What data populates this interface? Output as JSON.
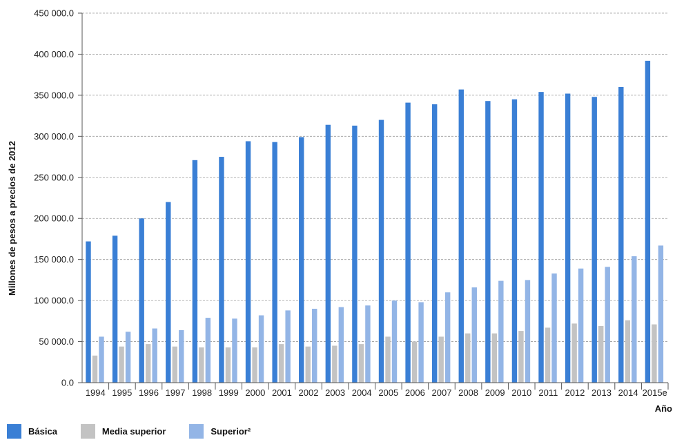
{
  "chart_data": {
    "type": "bar",
    "ylabel": "Millones de pesos a precios de 2012",
    "xlabel": "Año",
    "ylim": [
      0,
      450000
    ],
    "yticks": [
      0,
      50000,
      100000,
      150000,
      200000,
      250000,
      300000,
      350000,
      400000,
      450000
    ],
    "ytick_labels": [
      "0.0",
      "50 000.0",
      "100 000.0",
      "150 000.0",
      "200 000.0",
      "250 000.0",
      "300 000.0",
      "350 000.0",
      "400 000.0",
      "450 000.0"
    ],
    "grid": true,
    "legend_position": "bottom-left",
    "categories": [
      "1994",
      "1995",
      "1996",
      "1997",
      "1998",
      "1999",
      "2000",
      "2001",
      "2002",
      "2003",
      "2004",
      "2005",
      "2006",
      "2007",
      "2008",
      "2009",
      "2010",
      "2011",
      "2012",
      "2013",
      "2014",
      "2015e"
    ],
    "series": [
      {
        "name": "Básica",
        "color": "#3a7fd5",
        "values": [
          172000,
          179000,
          200000,
          220000,
          271000,
          275000,
          294000,
          293000,
          299000,
          314000,
          313000,
          320000,
          341000,
          339000,
          357000,
          343000,
          345000,
          354000,
          352000,
          348000,
          360000,
          392000
        ]
      },
      {
        "name": "Media superior",
        "color": "#c3c3c3",
        "values": [
          33000,
          44000,
          47000,
          44000,
          43000,
          43000,
          43000,
          47000,
          44000,
          45000,
          47000,
          56000,
          50000,
          56000,
          60000,
          60000,
          63000,
          67000,
          72000,
          69000,
          76000,
          71000
        ]
      },
      {
        "name": "Superior²",
        "color": "#93b5e6",
        "values": [
          56000,
          62000,
          66000,
          64000,
          79000,
          78000,
          82000,
          88000,
          90000,
          92000,
          94000,
          100000,
          98000,
          110000,
          116000,
          124000,
          125000,
          133000,
          139000,
          141000,
          154000,
          167000
        ]
      }
    ]
  }
}
